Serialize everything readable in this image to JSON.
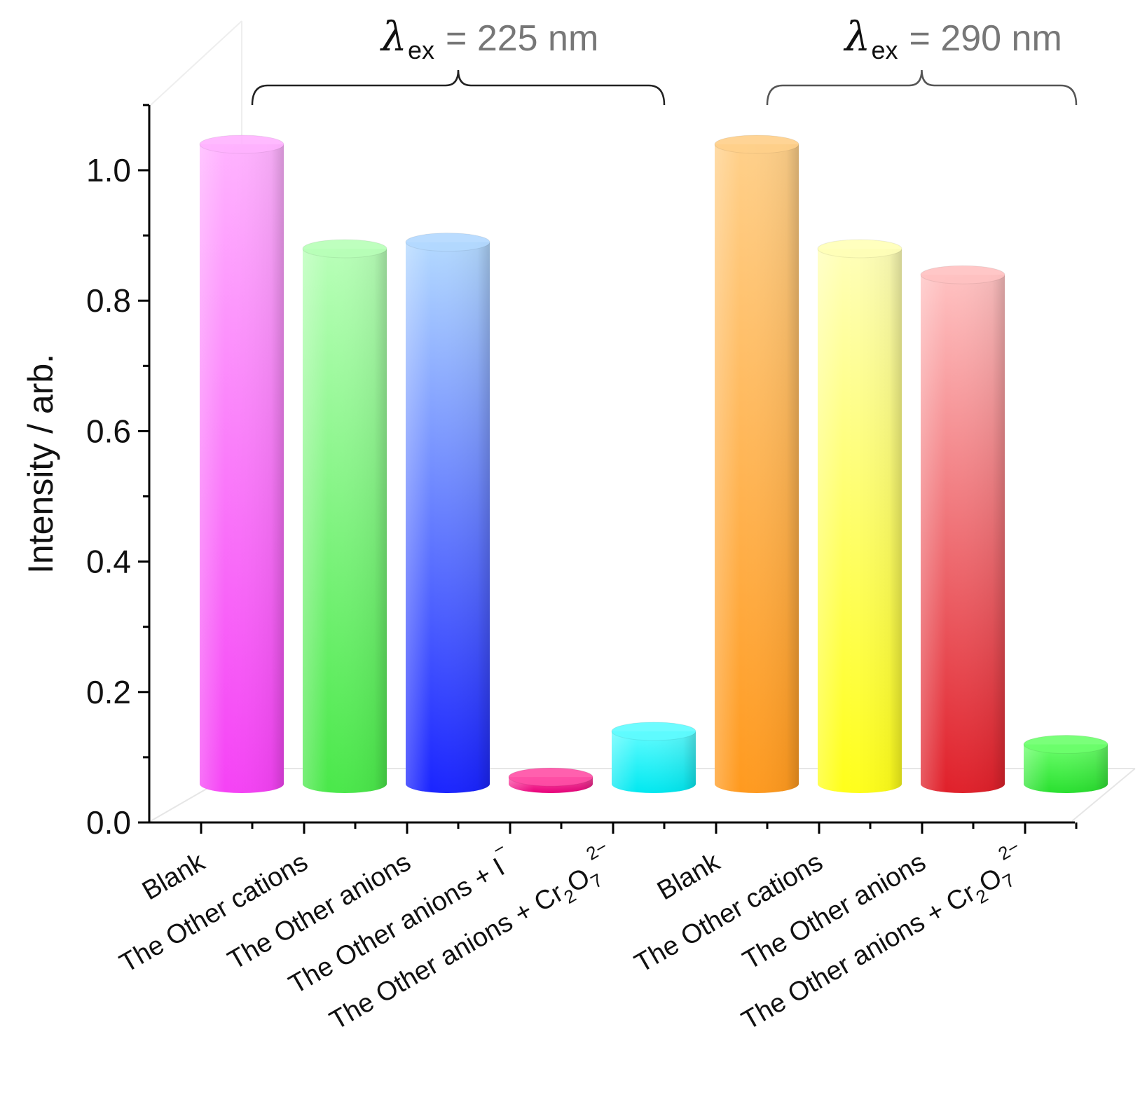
{
  "chart_data": {
    "type": "bar",
    "style": "3d-cylinder",
    "title": "",
    "xlabel": "",
    "ylabel": "Intensity / arb.",
    "ylim": [
      0.0,
      1.1
    ],
    "yticks": [
      "0.0",
      "0.2",
      "0.4",
      "0.6",
      "0.8",
      "1.0"
    ],
    "categories": [
      {
        "main": "Blank",
        "sub": "",
        "sup": ""
      },
      {
        "main": "The Other cations",
        "sub": "",
        "sup": ""
      },
      {
        "main": "The Other anions",
        "sub": "",
        "sup": ""
      },
      {
        "main": "The Other anions + I",
        "sub": "",
        "sup": "−"
      },
      {
        "main": "The Other anions + Cr",
        "sub": "2",
        "main2": "O",
        "sub2": "7",
        "sup": "2−"
      },
      {
        "main": "Blank",
        "sub": "",
        "sup": ""
      },
      {
        "main": "The Other cations",
        "sub": "",
        "sup": ""
      },
      {
        "main": "The Other anions",
        "sub": "",
        "sup": ""
      },
      {
        "main": "The Other anions + Cr",
        "sub": "2",
        "main2": "O",
        "sub2": "7",
        "sup": "2−"
      }
    ],
    "values": [
      1.0,
      0.84,
      0.85,
      0.03,
      0.1,
      1.0,
      0.84,
      0.8,
      0.08
    ],
    "bar_colors": [
      {
        "top": "#ffb3ff",
        "bottom": "#f542f5"
      },
      {
        "top": "#b8ffb8",
        "bottom": "#4ae84a"
      },
      {
        "top": "#b3d9ff",
        "bottom": "#1a24ff"
      },
      {
        "top": "#ff4fa6",
        "bottom": "#e8007a"
      },
      {
        "top": "#5ffcff",
        "bottom": "#00e8f0"
      },
      {
        "top": "#ffd08a",
        "bottom": "#ff9a1f"
      },
      {
        "top": "#ffffb8",
        "bottom": "#ffff1a"
      },
      {
        "top": "#ffc2c2",
        "bottom": "#e0202a"
      },
      {
        "top": "#6cff6c",
        "bottom": "#29e02f"
      }
    ],
    "groups": [
      {
        "symbol": "λ",
        "subscript": "ex",
        "label": "= 225 nm",
        "bars": [
          0,
          4
        ]
      },
      {
        "symbol": "λ",
        "subscript": "ex",
        "label": "= 290 nm",
        "bars": [
          5,
          8
        ]
      }
    ]
  }
}
